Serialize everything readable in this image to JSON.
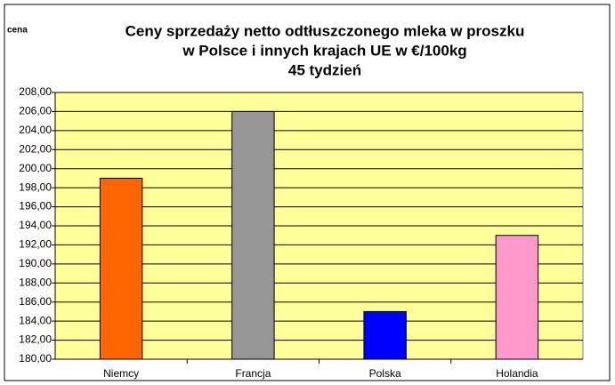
{
  "chart_data": {
    "type": "bar",
    "title": [
      "Ceny sprzedaży netto odtłuszczonego mleka w proszku",
      "w Polsce i innych krajach UE w €/100kg",
      "45 tydzień"
    ],
    "y_label": "cena",
    "categories": [
      "Niemcy",
      "Francja",
      "Polska",
      "Holandia"
    ],
    "values": [
      199,
      206,
      185,
      193
    ],
    "colors": [
      "#ff6600",
      "#969696",
      "#0000ff",
      "#ff99cc"
    ],
    "ylim": [
      180,
      208
    ],
    "yticks": [
      {
        "value": 180,
        "label": "180,00"
      },
      {
        "value": 182,
        "label": "182,00"
      },
      {
        "value": 184,
        "label": "184,00"
      },
      {
        "value": 186,
        "label": "186,00"
      },
      {
        "value": 188,
        "label": "188,00"
      },
      {
        "value": 190,
        "label": "190,00"
      },
      {
        "value": 192,
        "label": "192,00"
      },
      {
        "value": 194,
        "label": "194,00"
      },
      {
        "value": 196,
        "label": "196,00"
      },
      {
        "value": 198,
        "label": "198,00"
      },
      {
        "value": 200,
        "label": "200,00"
      },
      {
        "value": 202,
        "label": "202,00"
      },
      {
        "value": 204,
        "label": "204,00"
      },
      {
        "value": 206,
        "label": "206,00"
      },
      {
        "value": 208,
        "label": "208,00"
      }
    ],
    "grid": true
  }
}
